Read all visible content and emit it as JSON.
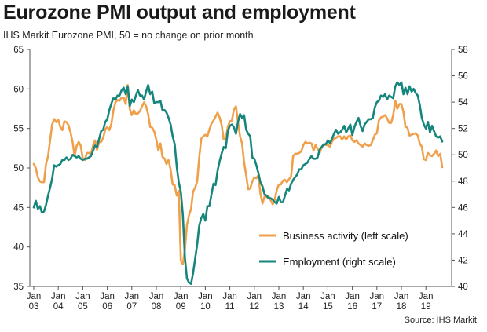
{
  "title": "Eurozone PMI output and employment",
  "subtitle": "IHS Markit  Eurozone PMI, 50 = no change on prior month",
  "source": "Source: IHS Markit.",
  "chart_data": {
    "type": "line",
    "x_start": "2003-01",
    "x_ticks": [
      {
        "label": [
          "Jan",
          "03"
        ],
        "year": 2003
      },
      {
        "label": [
          "Jan",
          "04"
        ],
        "year": 2004
      },
      {
        "label": [
          "Jan",
          "05"
        ],
        "year": 2005
      },
      {
        "label": [
          "Jan",
          "06"
        ],
        "year": 2006
      },
      {
        "label": [
          "Jan",
          "07"
        ],
        "year": 2007
      },
      {
        "label": [
          "Jan",
          "08"
        ],
        "year": 2008
      },
      {
        "label": [
          "Jan",
          "09"
        ],
        "year": 2009
      },
      {
        "label": [
          "Jan",
          "10"
        ],
        "year": 2010
      },
      {
        "label": [
          "Jan",
          "11"
        ],
        "year": 2011
      },
      {
        "label": [
          "Jan",
          "12"
        ],
        "year": 2012
      },
      {
        "label": [
          "Jan",
          "13"
        ],
        "year": 2013
      },
      {
        "label": [
          "Jan",
          "14"
        ],
        "year": 2014
      },
      {
        "label": [
          "Jan",
          "15"
        ],
        "year": 2015
      },
      {
        "label": [
          "Jan",
          "16"
        ],
        "year": 2016
      },
      {
        "label": [
          "Jan",
          "17"
        ],
        "year": 2017
      },
      {
        "label": [
          "Jan",
          "18"
        ],
        "year": 2018
      },
      {
        "label": [
          "Jan",
          "19"
        ],
        "year": 2019
      }
    ],
    "y_left": {
      "min": 35,
      "max": 65,
      "ticks": [
        35,
        40,
        45,
        50,
        55,
        60,
        65
      ]
    },
    "y_right": {
      "min": 40,
      "max": 58,
      "ticks": [
        40,
        42,
        44,
        46,
        48,
        50,
        52,
        54,
        56,
        58
      ]
    },
    "grid": false,
    "legend_position": "bottom-right",
    "series": [
      {
        "name": "Business activity (left scale)",
        "axis": "left",
        "color": "#f0a04b",
        "values": [
          50.5,
          50.0,
          48.8,
          48.3,
          48.2,
          48.2,
          50.5,
          51.5,
          53.5,
          55.5,
          56.2,
          55.8,
          56.1,
          55.2,
          54.8,
          55.9,
          55.8,
          55.4,
          54.5,
          53.3,
          51.5,
          52.8,
          53.3,
          52.8,
          51.2,
          51.0,
          51.9,
          51.9,
          51.8,
          52.8,
          53.5,
          52.3,
          53.3,
          53.3,
          53.8,
          54.9,
          55.2,
          54.8,
          55.6,
          57.3,
          58.3,
          58.6,
          58.5,
          58.9,
          58.9,
          58.1,
          60.5,
          57.5,
          56.7,
          57.3,
          56.8,
          56.9,
          57.2,
          57.8,
          58.3,
          57.8,
          56.8,
          55.2,
          55.1,
          54.6,
          53.6,
          52.2,
          53.1,
          51.4,
          51.2,
          50.5,
          51.0,
          49.8,
          47.9,
          47.8,
          46.5,
          47.1,
          38.3,
          37.8,
          39.7,
          42.8,
          44.0,
          44.8,
          47.0,
          47.5,
          48.3,
          51.3,
          53.7,
          54.0,
          54.2,
          54.0,
          54.9,
          55.6,
          56.0,
          56.5,
          57.0,
          56.4,
          55.4,
          53.6,
          53.7,
          55.2,
          55.9,
          56.0,
          57.4,
          57.8,
          55.8,
          54.0,
          53.1,
          50.7,
          49.1,
          47.3,
          47.4,
          48.3,
          48.8,
          48.7,
          49.1,
          46.7,
          45.5,
          46.4,
          46.3,
          46.4,
          45.9,
          45.4,
          46.0,
          47.2,
          47.9,
          47.9,
          48.4,
          48.5,
          48.2,
          48.6,
          48.9,
          51.5,
          51.8,
          51.8,
          51.9,
          52.1,
          52.9,
          53.3,
          53.1,
          53.2,
          53.1,
          52.2,
          52.9,
          52.4,
          51.9,
          52.6,
          52.9,
          52.9,
          52.9,
          52.7,
          53.3,
          53.7,
          53.8,
          54.0,
          54.0,
          53.6,
          54.0,
          53.6,
          54.0,
          54.1,
          53.5,
          53.3,
          53.5,
          53.1,
          52.9,
          52.7,
          53.1,
          52.9,
          52.8,
          52.9,
          53.5,
          54.2,
          54.4,
          56.0,
          56.4,
          56.5,
          56.7,
          56.3,
          55.7,
          55.7,
          56.7,
          58.5,
          57.5,
          58.1,
          58.1,
          57.1,
          55.2,
          55.1,
          54.1,
          54.2,
          54.3,
          54.4,
          54.1,
          53.1,
          52.7,
          51.1,
          51.0,
          51.9,
          51.6,
          51.5,
          51.8,
          52.2,
          51.5,
          51.8,
          50.1
        ]
      },
      {
        "name": "Employment (right scale)",
        "axis": "right",
        "color": "#16867d",
        "values": [
          46.0,
          46.5,
          45.9,
          46.1,
          45.6,
          45.7,
          46.2,
          46.9,
          47.5,
          48.2,
          49.2,
          49.1,
          49.2,
          49.3,
          49.6,
          49.6,
          49.8,
          49.6,
          49.7,
          50.0,
          49.9,
          49.8,
          49.9,
          49.7,
          49.6,
          49.7,
          49.7,
          49.8,
          49.9,
          50.3,
          50.7,
          50.6,
          51.2,
          51.8,
          51.9,
          52.5,
          52.7,
          53.4,
          53.9,
          54.3,
          54.2,
          54.5,
          54.5,
          54.9,
          55.1,
          54.6,
          55.2,
          53.7,
          54.2,
          54.0,
          54.5,
          54.9,
          54.5,
          54.5,
          54.2,
          54.8,
          55.3,
          54.6,
          54.8,
          53.9,
          54.0,
          54.0,
          54.1,
          53.4,
          53.4,
          53.2,
          52.8,
          52.3,
          51.4,
          50.8,
          49.1,
          47.9,
          47.2,
          45.4,
          42.2,
          40.6,
          40.3,
          40.2,
          41.0,
          42.1,
          43.2,
          44.6,
          45.2,
          45.5,
          45.0,
          46.1,
          46.1,
          47.0,
          47.8,
          47.7,
          48.8,
          49.5,
          50.1,
          50.6,
          50.5,
          51.8,
          52.2,
          52.3,
          52.1,
          51.6,
          52.5,
          53.1,
          52.8,
          53.0,
          51.9,
          51.6,
          51.4,
          49.8,
          49.7,
          49.2,
          48.6,
          47.9,
          47.6,
          47.0,
          46.9,
          46.7,
          46.7,
          46.6,
          46.4,
          46.3,
          46.8,
          46.4,
          46.4,
          46.9,
          47.4,
          47.3,
          47.8,
          48.1,
          48.3,
          48.5,
          48.9,
          48.9,
          49.2,
          49.3,
          49.4,
          49.7,
          49.9,
          49.7,
          49.7,
          49.8,
          50.4,
          50.6,
          50.8,
          50.8,
          51.1,
          50.9,
          51.2,
          51.6,
          51.9,
          51.6,
          51.7,
          51.9,
          52.2,
          51.7,
          52.0,
          52.3,
          51.5,
          52.1,
          52.5,
          52.8,
          52.2,
          51.8,
          52.3,
          52.5,
          52.7,
          52.7,
          52.8,
          53.6,
          54.0,
          54.1,
          54.5,
          54.4,
          54.6,
          54.2,
          54.5,
          54.4,
          54.3,
          55.2,
          55.5,
          55.3,
          55.5,
          54.6,
          55.1,
          54.6,
          55.2,
          54.8,
          55.0,
          54.7,
          54.5,
          53.8,
          52.8,
          52.3,
          52.0,
          52.5,
          51.7,
          52.2,
          51.8,
          51.4,
          51.3,
          51.4,
          51.0
        ]
      }
    ]
  }
}
